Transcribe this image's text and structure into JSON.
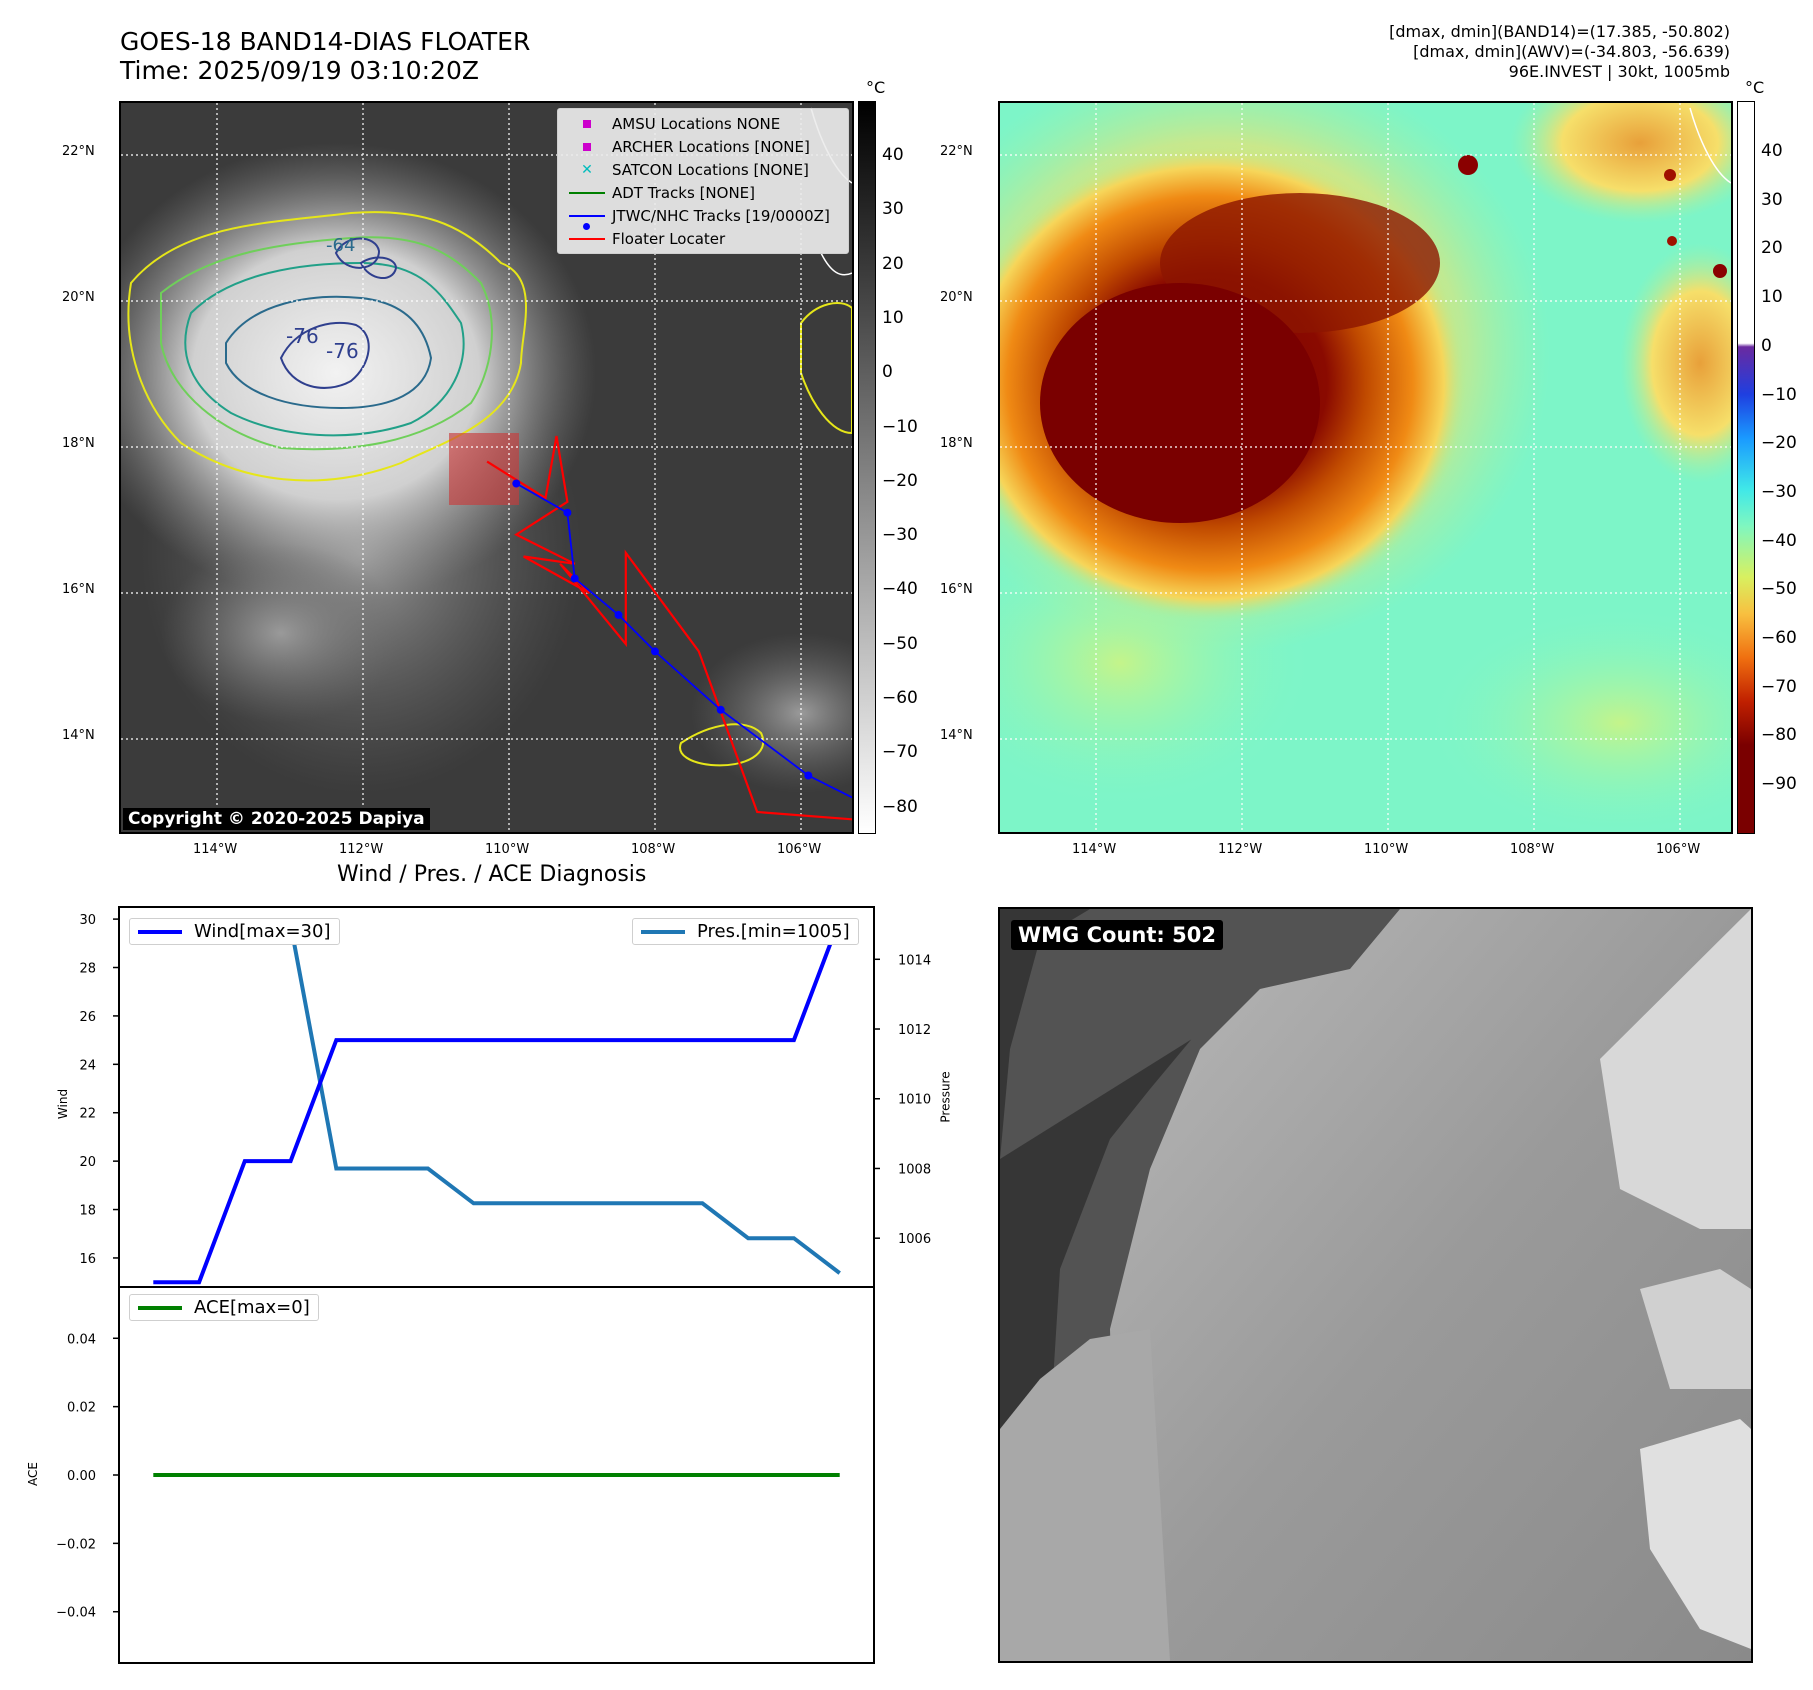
{
  "header": {
    "title_line1": "GOES-18 BAND14-DIAS FLOATER",
    "title_line2": "Time: 2025/09/19 03:10:20Z",
    "info_line1": "[dmax, dmin](BAND14)=(17.385, -50.802)",
    "info_line2": "[dmax, dmin](AWV)=(-34.803, -56.639)",
    "info_line3": "96E.INVEST | 30kt, 1005mb"
  },
  "map": {
    "lat_labels": [
      "22°N",
      "20°N",
      "18°N",
      "16°N",
      "14°N"
    ],
    "lon_labels": [
      "114°W",
      "112°W",
      "110°W",
      "108°W",
      "106°W"
    ],
    "copyright": "Copyright © 2020-2025 Dapiya",
    "contour_labels": [
      "-64",
      "-76",
      "-76"
    ],
    "legend": [
      {
        "label": "AMSU Locations NONE",
        "marker": "square",
        "color": "#cc00cc"
      },
      {
        "label": "ARCHER Locations [NONE]",
        "marker": "square",
        "color": "#cc00cc"
      },
      {
        "label": "SATCON Locations [NONE]",
        "marker": "x",
        "color": "#00bcbc"
      },
      {
        "label": "ADT Tracks [NONE]",
        "marker": "line",
        "color": "#008000"
      },
      {
        "label": "JTWC/NHC Tracks [19/0000Z]",
        "marker": "line-dot",
        "color": "#0000ff"
      },
      {
        "label": "Floater Locater",
        "marker": "line",
        "color": "#ff0000"
      }
    ],
    "track_jtwc": [
      [
        -109.9,
        17.5
      ],
      [
        -109.2,
        17.1
      ],
      [
        -109.1,
        16.2
      ],
      [
        -108.5,
        15.7
      ],
      [
        -108.0,
        15.2
      ],
      [
        -107.1,
        14.4
      ],
      [
        -105.9,
        13.5
      ],
      [
        -105.3,
        13.2
      ]
    ],
    "track_floater": [
      [
        -110.3,
        17.8
      ],
      [
        -109.5,
        17.3
      ],
      [
        -109.35,
        18.15
      ],
      [
        -109.2,
        17.25
      ],
      [
        -109.9,
        16.8
      ],
      [
        -109.1,
        16.4
      ],
      [
        -109.8,
        16.5
      ],
      [
        -108.9,
        16.0
      ],
      [
        -109.3,
        16.4
      ],
      [
        -108.4,
        15.3
      ],
      [
        -108.4,
        16.55
      ],
      [
        -107.4,
        15.2
      ],
      [
        -106.6,
        13.0
      ],
      [
        -105.3,
        12.9
      ]
    ]
  },
  "colorbar_gray": {
    "unit": "°C",
    "ticks": [
      "40",
      "30",
      "20",
      "10",
      "0",
      "−10",
      "−20",
      "−30",
      "−40",
      "−50",
      "−60",
      "−70",
      "−80"
    ],
    "range": [
      -85,
      48
    ]
  },
  "colorbar_color": {
    "unit": "°C",
    "ticks": [
      "40",
      "30",
      "20",
      "10",
      "0",
      "−10",
      "−20",
      "−30",
      "−40",
      "−50",
      "−60",
      "−70",
      "−80",
      "−90"
    ],
    "range": [
      -100,
      50
    ]
  },
  "right_map": {
    "lat_labels": [
      "22°N",
      "20°N",
      "18°N",
      "16°N",
      "14°N"
    ],
    "lon_labels": [
      "114°W",
      "112°W",
      "110°W",
      "108°W",
      "106°W"
    ]
  },
  "diag": {
    "title": "Wind / Pres. / ACE Diagnosis",
    "wind_ylabel": "Wind",
    "pres_ylabel": "Pressure",
    "ace_ylabel": "ACE",
    "wind_legend": "Wind[max=30]",
    "pres_legend": "Pres.[min=1005]",
    "ace_legend": "ACE[max=0]",
    "wind_ticks": [
      "30",
      "28",
      "26",
      "24",
      "22",
      "20",
      "18",
      "16"
    ],
    "pres_ticks": [
      "1014",
      "1012",
      "1010",
      "1008",
      "1006"
    ],
    "ace_ticks": [
      "0.04",
      "0.02",
      "0.00",
      "−0.02",
      "−0.04"
    ],
    "wind_color": "#0000ff",
    "pres_color": "#1f77b4",
    "ace_color": "#008000"
  },
  "chart_data": [
    {
      "type": "line",
      "title": "Wind / Pres. / ACE Diagnosis",
      "x": [
        0,
        1,
        2,
        3,
        4,
        5,
        6,
        7,
        8,
        9,
        10,
        11,
        12,
        13,
        14,
        15
      ],
      "series": [
        {
          "name": "Wind[max=30]",
          "values": [
            15,
            15,
            20,
            20,
            25,
            25,
            25,
            25,
            25,
            25,
            25,
            25,
            25,
            25,
            25,
            30
          ],
          "ylabel": "Wind",
          "ylim": [
            14.8,
            30.5
          ]
        },
        {
          "name": "Pres.[min=1005]",
          "values": [
            1015,
            1015,
            1015,
            1015,
            1008,
            1008,
            1008,
            1007,
            1007,
            1007,
            1007,
            1007,
            1007,
            1006,
            1006,
            1005
          ],
          "ylabel": "Pressure",
          "ylim": [
            1004.6,
            1015.5
          ]
        }
      ],
      "xlim": [
        -0.75,
        15.75
      ]
    },
    {
      "type": "line",
      "x": [
        0,
        1,
        2,
        3,
        4,
        5,
        6,
        7,
        8,
        9,
        10,
        11,
        12,
        13,
        14,
        15
      ],
      "series": [
        {
          "name": "ACE[max=0]",
          "values": [
            0,
            0,
            0,
            0,
            0,
            0,
            0,
            0,
            0,
            0,
            0,
            0,
            0,
            0,
            0,
            0
          ],
          "ylabel": "ACE",
          "ylim": [
            -0.055,
            0.055
          ]
        }
      ],
      "xlim": [
        -0.75,
        15.75
      ]
    }
  ],
  "wmg": {
    "label": "WMG Count: 502"
  }
}
